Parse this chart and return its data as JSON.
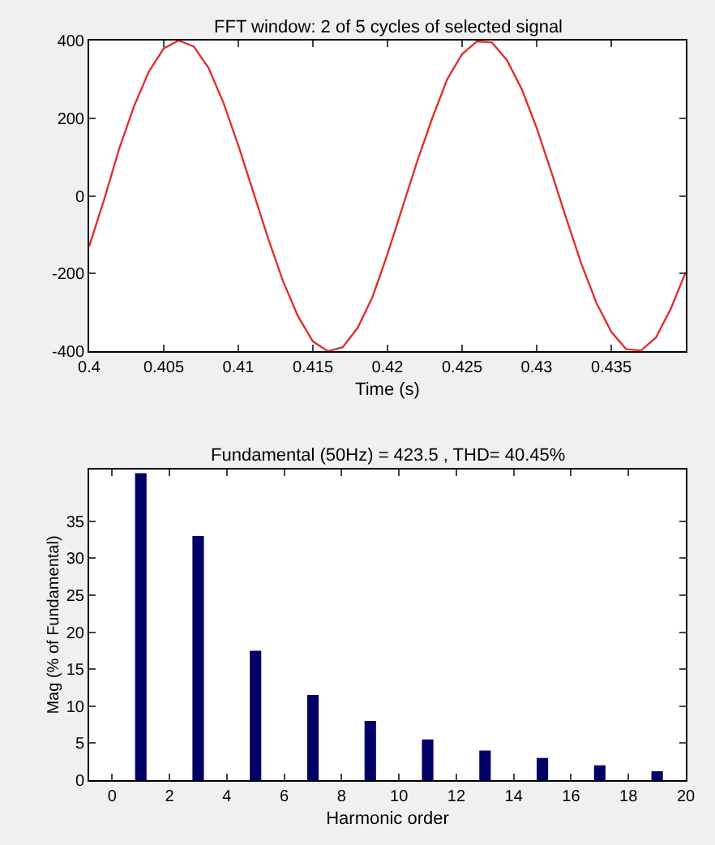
{
  "chart_data": [
    {
      "type": "line",
      "title": "FFT window: 2 of 5 cycles of selected signal",
      "xlabel": "Time (s)",
      "x": [
        0.4,
        0.401,
        0.402,
        0.403,
        0.404,
        0.405,
        0.406,
        0.407,
        0.408,
        0.409,
        0.41,
        0.411,
        0.412,
        0.413,
        0.414,
        0.415,
        0.416,
        0.417,
        0.418,
        0.419,
        0.42,
        0.421,
        0.422,
        0.423,
        0.424,
        0.425,
        0.426,
        0.427,
        0.428,
        0.429,
        0.43,
        0.431,
        0.432,
        0.433,
        0.434,
        0.435,
        0.436,
        0.437,
        0.438,
        0.439,
        0.44
      ],
      "series": [
        {
          "color": "#e03030",
          "values": [
            -130,
            -10,
            120,
            230,
            320,
            380,
            400,
            385,
            330,
            240,
            130,
            10,
            -110,
            -220,
            -310,
            -375,
            -400,
            -390,
            -340,
            -260,
            -150,
            -30,
            90,
            200,
            300,
            365,
            398,
            395,
            350,
            275,
            175,
            60,
            -60,
            -175,
            -275,
            -350,
            -395,
            -398,
            -365,
            -290,
            -196
          ]
        }
      ],
      "xlim": [
        0.4,
        0.44
      ],
      "xticks": [
        0.4,
        0.405,
        0.41,
        0.415,
        0.42,
        0.425,
        0.43,
        0.435
      ],
      "ylim": [
        -400,
        400
      ],
      "yticks": [
        -400,
        -200,
        0,
        200,
        400
      ]
    },
    {
      "type": "bar",
      "title": "Fundamental (50Hz) = 423.5 , THD= 40.45%",
      "xlabel": "Harmonic order",
      "ylabel": "Mag (% of Fundamental)",
      "x": [
        1,
        3,
        5,
        7,
        9,
        11,
        13,
        15,
        17,
        19
      ],
      "series": [
        {
          "color": "#000066",
          "values": [
            41.5,
            33,
            17.5,
            11.5,
            8,
            5.5,
            4,
            3,
            2,
            1.2
          ]
        }
      ],
      "xlim": [
        -0.8,
        20
      ],
      "xticks": [
        0,
        2,
        4,
        6,
        8,
        10,
        12,
        14,
        16,
        18,
        20
      ],
      "ylim": [
        0,
        42
      ],
      "yticks": [
        0,
        5,
        10,
        15,
        20,
        25,
        30,
        35
      ]
    }
  ]
}
